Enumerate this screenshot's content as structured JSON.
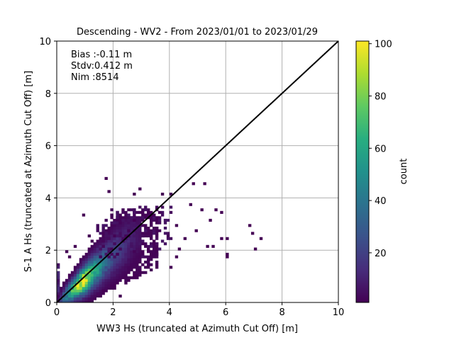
{
  "chart_data": {
    "type": "heatmap",
    "title": "Descending - WV2 - From 2023/01/01 to 2023/01/29",
    "xlabel": "WW3 Hs (truncated at Azimuth Cut Off) [m]",
    "ylabel": "S-1 A Hs (truncated at Azimuth Cut Off) [m]",
    "xlim": [
      0,
      10
    ],
    "ylim": [
      0,
      10
    ],
    "x_ticks": [
      "0",
      "2",
      "4",
      "6",
      "8",
      "10"
    ],
    "y_ticks": [
      "0",
      "2",
      "4",
      "6",
      "8",
      "10"
    ],
    "grid": true,
    "stats": {
      "bias": "Bias :-0.11 m",
      "stdv": "Stdv:0.412 m",
      "nim": "Nim :8514"
    },
    "reference_line": {
      "x": [
        0,
        10
      ],
      "y": [
        0,
        10
      ],
      "color": "#000000"
    },
    "colorbar": {
      "label": "count",
      "min": 1,
      "max": 101,
      "ticks": [
        "20",
        "40",
        "60",
        "80",
        "100"
      ],
      "colormap": "viridis"
    },
    "core_band": {
      "description_values": [
        {
          "x": 0.9,
          "y": 0.8,
          "count": 100
        },
        {
          "x": 1.0,
          "y": 0.9,
          "count": 95
        },
        {
          "x": 0.7,
          "y": 0.6,
          "count": 85
        },
        {
          "x": 1.2,
          "y": 1.1,
          "count": 75
        },
        {
          "x": 0.5,
          "y": 0.4,
          "count": 60
        },
        {
          "x": 1.5,
          "y": 1.4,
          "count": 50
        },
        {
          "x": 0.3,
          "y": 0.3,
          "count": 40
        },
        {
          "x": 1.8,
          "y": 1.7,
          "count": 30
        },
        {
          "x": 2.2,
          "y": 2.0,
          "count": 20
        },
        {
          "x": 2.6,
          "y": 2.4,
          "count": 10
        },
        {
          "x": 3.0,
          "y": 2.7,
          "count": 5
        }
      ]
    },
    "outliers": [
      {
        "x": 1.75,
        "y": 4.75,
        "count": 1
      },
      {
        "x": 1.85,
        "y": 4.25,
        "count": 1
      },
      {
        "x": 0.95,
        "y": 3.35,
        "count": 1
      },
      {
        "x": 2.75,
        "y": 4.15,
        "count": 1
      },
      {
        "x": 2.95,
        "y": 4.35,
        "count": 1
      },
      {
        "x": 3.75,
        "y": 4.15,
        "count": 1
      },
      {
        "x": 4.05,
        "y": 4.15,
        "count": 1
      },
      {
        "x": 4.85,
        "y": 4.55,
        "count": 1
      },
      {
        "x": 5.25,
        "y": 4.55,
        "count": 1
      },
      {
        "x": 4.75,
        "y": 3.75,
        "count": 1
      },
      {
        "x": 5.15,
        "y": 3.55,
        "count": 1
      },
      {
        "x": 5.65,
        "y": 3.55,
        "count": 1
      },
      {
        "x": 5.45,
        "y": 3.15,
        "count": 1
      },
      {
        "x": 5.85,
        "y": 3.45,
        "count": 1
      },
      {
        "x": 5.35,
        "y": 2.15,
        "count": 1
      },
      {
        "x": 5.55,
        "y": 2.15,
        "count": 1
      },
      {
        "x": 5.85,
        "y": 2.45,
        "count": 1
      },
      {
        "x": 6.05,
        "y": 2.45,
        "count": 1
      },
      {
        "x": 6.05,
        "y": 1.85,
        "count": 1
      },
      {
        "x": 6.05,
        "y": 1.75,
        "count": 1
      },
      {
        "x": 6.85,
        "y": 2.95,
        "count": 1
      },
      {
        "x": 6.95,
        "y": 2.65,
        "count": 1
      },
      {
        "x": 7.25,
        "y": 2.45,
        "count": 1
      },
      {
        "x": 7.05,
        "y": 2.05,
        "count": 1
      },
      {
        "x": 4.25,
        "y": 1.75,
        "count": 1
      },
      {
        "x": 4.05,
        "y": 1.35,
        "count": 1
      },
      {
        "x": 3.55,
        "y": 1.35,
        "count": 1
      },
      {
        "x": 2.25,
        "y": 0.25,
        "count": 1
      },
      {
        "x": 1.65,
        "y": 0.45,
        "count": 1
      },
      {
        "x": 0.45,
        "y": 1.75,
        "count": 1
      },
      {
        "x": 0.35,
        "y": 1.95,
        "count": 1
      },
      {
        "x": 0.65,
        "y": 2.15,
        "count": 1
      },
      {
        "x": 1.25,
        "y": 2.35,
        "count": 1
      },
      {
        "x": 1.15,
        "y": 2.55,
        "count": 1
      },
      {
        "x": 1.95,
        "y": 3.35,
        "count": 1
      },
      {
        "x": 4.25,
        "y": 2.95,
        "count": 1
      },
      {
        "x": 4.55,
        "y": 2.45,
        "count": 1
      },
      {
        "x": 4.35,
        "y": 2.05,
        "count": 1
      },
      {
        "x": 4.95,
        "y": 2.75,
        "count": 1
      }
    ]
  }
}
